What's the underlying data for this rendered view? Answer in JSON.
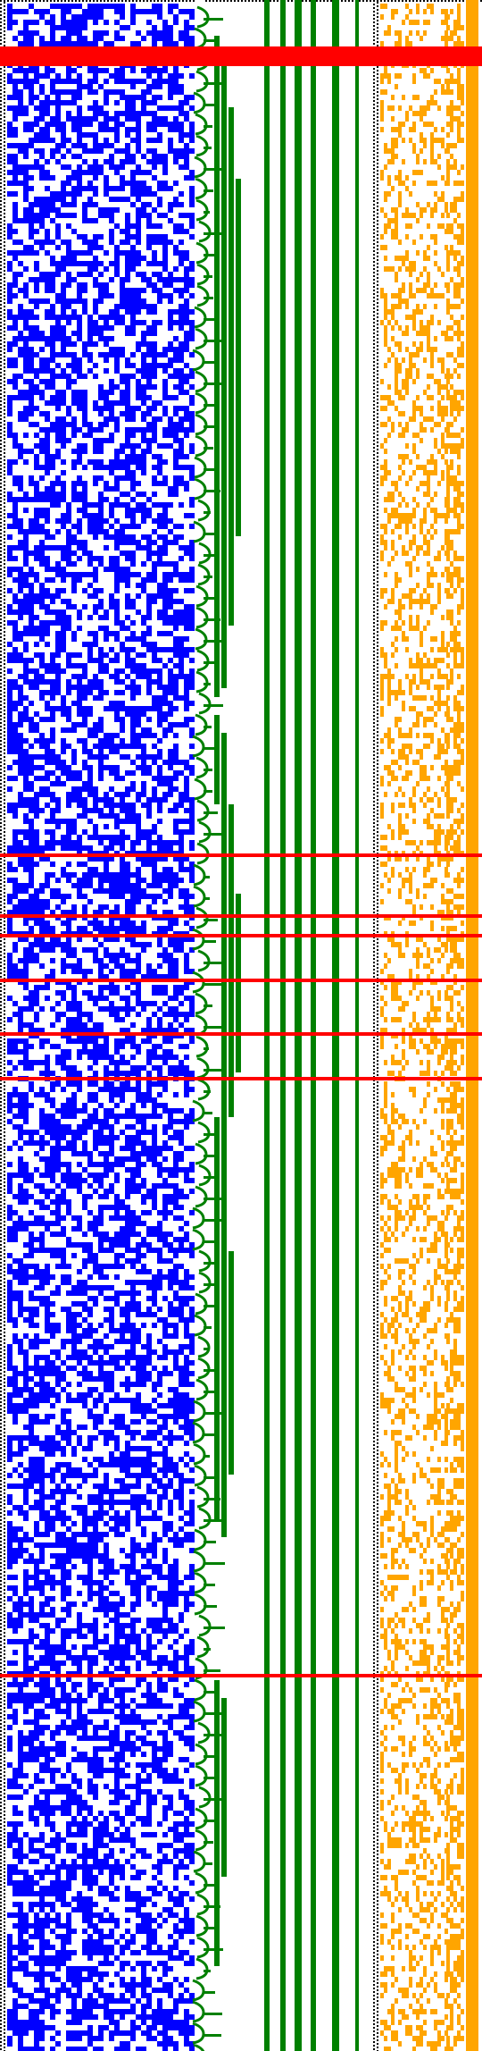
{
  "colors": {
    "background": "#ffffff",
    "cell_blue": "#0000ff",
    "tree_green": "#008000",
    "cell_orange": "#ffa500",
    "marker_red": "#ff0000",
    "border_dots": "#000000"
  },
  "panels": [
    {
      "name": "blue-cell-grid",
      "description_icon": "grid-icon"
    },
    {
      "name": "green-branch-tree",
      "description_icon": "tree-icon"
    },
    {
      "name": "orange-cell-grid",
      "description_icon": "grid-icon"
    }
  ],
  "red_markers": {
    "thick_band_count": 1,
    "thin_line_count": 7
  },
  "green_vertical_bar_count": 6
}
